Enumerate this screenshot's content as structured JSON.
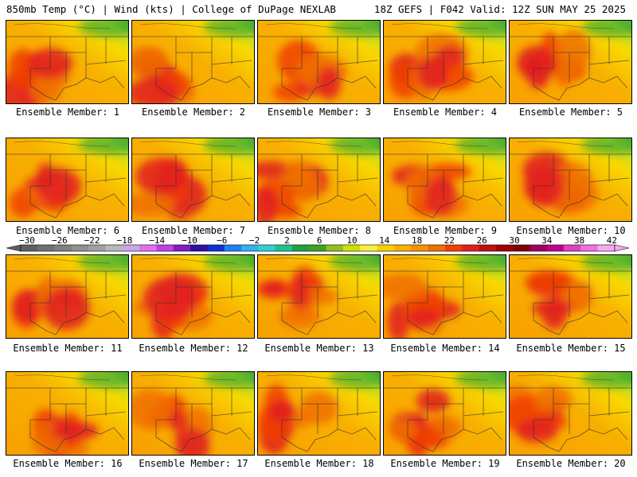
{
  "header": {
    "left_title": "850mb Temp (°C) | Wind (kts) | College of DuPage NEXLAB",
    "right_title": "18Z GEFS | F042 Valid: 12Z SUN MAY 25 2025"
  },
  "colorbar": {
    "labels": [
      "−30",
      "−26",
      "−22",
      "−18",
      "−14",
      "−10",
      "−6",
      "−2",
      "2",
      "6",
      "10",
      "14",
      "18",
      "22",
      "26",
      "30",
      "34",
      "38",
      "42"
    ],
    "colors": [
      "#606060",
      "#707070",
      "#808080",
      "#909090",
      "#a0a0a0",
      "#b8b8b8",
      "#c8a8e8",
      "#e070f0",
      "#c040e0",
      "#8020c0",
      "#3010a0",
      "#1030d0",
      "#2080f0",
      "#30b0f0",
      "#30d0d0",
      "#20c090",
      "#20a040",
      "#40a020",
      "#90c020",
      "#d0e000",
      "#f8f040",
      "#f8d000",
      "#f8b000",
      "#f89000",
      "#f07000",
      "#f04000",
      "#e02020",
      "#c01010",
      "#a00000",
      "#800000",
      "#a00060",
      "#c00090",
      "#e040c0",
      "#f070e0",
      "#f8a8f0"
    ]
  },
  "panels": [
    {
      "caption": "Ensemble Member: 1"
    },
    {
      "caption": "Ensemble Member: 2"
    },
    {
      "caption": "Ensemble Member: 3"
    },
    {
      "caption": "Ensemble Member: 4"
    },
    {
      "caption": "Ensemble Member: 5"
    },
    {
      "caption": "Ensemble Member: 6"
    },
    {
      "caption": "Ensemble Member: 7"
    },
    {
      "caption": "Ensemble Member: 8"
    },
    {
      "caption": "Ensemble Member: 9"
    },
    {
      "caption": "Ensemble Member: 10"
    },
    {
      "caption": "Ensemble Member: 11"
    },
    {
      "caption": "Ensemble Member: 12"
    },
    {
      "caption": "Ensemble Member: 13"
    },
    {
      "caption": "Ensemble Member: 14"
    },
    {
      "caption": "Ensemble Member: 15"
    },
    {
      "caption": "Ensemble Member: 16"
    },
    {
      "caption": "Ensemble Member: 17"
    },
    {
      "caption": "Ensemble Member: 18"
    },
    {
      "caption": "Ensemble Member: 19"
    },
    {
      "caption": "Ensemble Member: 20"
    }
  ]
}
